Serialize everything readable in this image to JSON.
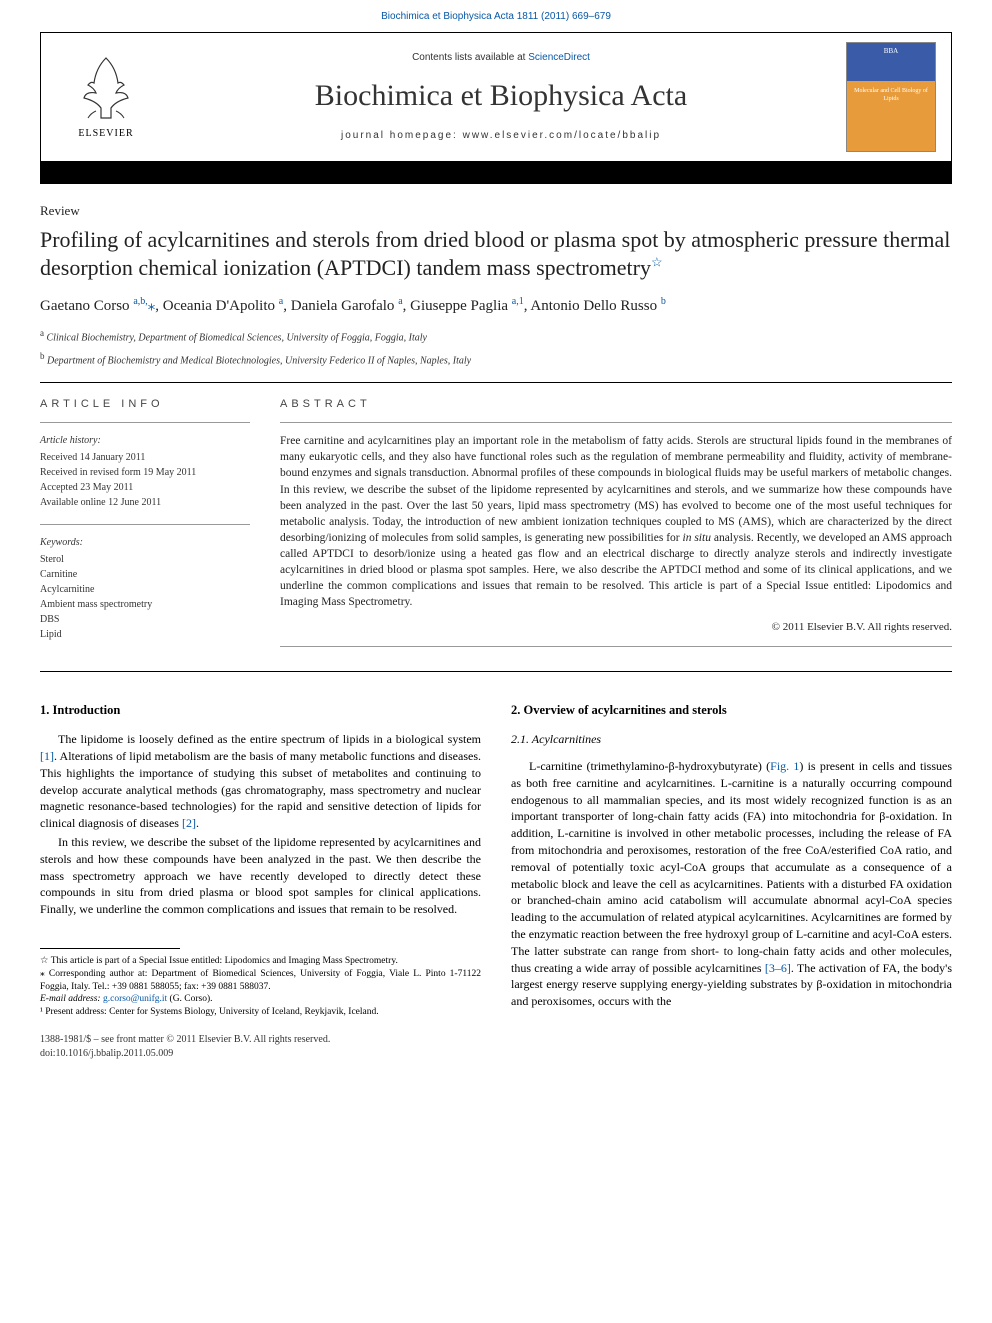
{
  "crumb": "Biochimica et Biophysica Acta 1811 (2011) 669–679",
  "header": {
    "contents_prefix": "Contents lists available at ",
    "contents_link": "ScienceDirect",
    "journal": "Biochimica et Biophysica Acta",
    "homepage_prefix": "journal homepage: ",
    "homepage": "www.elsevier.com/locate/bbalip",
    "elsevier": "ELSEVIER",
    "cover_top": "BBA",
    "cover_sub": "Molecular and Cell Biology of Lipids"
  },
  "article": {
    "type": "Review",
    "title": "Profiling of acylcarnitines and sterols from dried blood or plasma spot by atmospheric pressure thermal desorption chemical ionization (APTDCI) tandem mass spectrometry",
    "star": "☆",
    "authors_html": "Gaetano Corso <sup>a,b,</sup><span class='corr'>⁎</span>, Oceania D'Apolito <sup>a</sup>, Daniela Garofalo <sup>a</sup>, Giuseppe Paglia <sup>a,1</sup>, Antonio Dello Russo <sup>b</sup>",
    "affiliations": [
      {
        "sup": "a",
        "text": "Clinical Biochemistry, Department of Biomedical Sciences, University of Foggia, Foggia, Italy"
      },
      {
        "sup": "b",
        "text": "Department of Biochemistry and Medical Biotechnologies, University Federico II of Naples, Naples, Italy"
      }
    ]
  },
  "info": {
    "head": "ARTICLE INFO",
    "history_label": "Article history:",
    "history": [
      "Received 14 January 2011",
      "Received in revised form 19 May 2011",
      "Accepted 23 May 2011",
      "Available online 12 June 2011"
    ],
    "keywords_label": "Keywords:",
    "keywords": [
      "Sterol",
      "Carnitine",
      "Acylcarnitine",
      "Ambient mass spectrometry",
      "DBS",
      "Lipid"
    ]
  },
  "abstract": {
    "head": "ABSTRACT",
    "text": "Free carnitine and acylcarnitines play an important role in the metabolism of fatty acids. Sterols are structural lipids found in the membranes of many eukaryotic cells, and they also have functional roles such as the regulation of membrane permeability and fluidity, activity of membrane-bound enzymes and signals transduction. Abnormal profiles of these compounds in biological fluids may be useful markers of metabolic changes. In this review, we describe the subset of the lipidome represented by acylcarnitines and sterols, and we summarize how these compounds have been analyzed in the past. Over the last 50 years, lipid mass spectrometry (MS) has evolved to become one of the most useful techniques for metabolic analysis. Today, the introduction of new ambient ionization techniques coupled to MS (AMS), which are characterized by the direct desorbing/ionizing of molecules from solid samples, is generating new possibilities for in situ analysis. Recently, we developed an AMS approach called APTDCI to desorb/ionize using a heated gas flow and an electrical discharge to directly analyze sterols and indirectly investigate acylcarnitines in dried blood or plasma spot samples. Here, we also describe the APTDCI method and some of its clinical applications, and we underline the common complications and issues that remain to be resolved. This article is part of a Special Issue entitled: Lipodomics and Imaging Mass Spectrometry.",
    "copyright": "© 2011 Elsevier B.V. All rights reserved."
  },
  "sections": {
    "intro_title": "1. Introduction",
    "intro_p1": "The lipidome is loosely defined as the entire spectrum of lipids in a biological system [1]. Alterations of lipid metabolism are the basis of many metabolic functions and diseases. This highlights the importance of studying this subset of metabolites and continuing to develop accurate analytical methods (gas chromatography, mass spectrometry and nuclear magnetic resonance-based technologies) for the rapid and sensitive detection of lipids for clinical diagnosis of diseases [2].",
    "intro_p2": "In this review, we describe the subset of the lipidome represented by acylcarnitines and sterols and how these compounds have been analyzed in the past. We then describe the mass spectrometry approach we have recently developed to directly detect these compounds in situ from dried plasma or blood spot samples for clinical applications. Finally, we underline the common complications and issues that remain to be resolved.",
    "over_title": "2. Overview of acylcarnitines and sterols",
    "acyl_title": "2.1. Acylcarnitines",
    "acyl_p1": "L-carnitine (trimethylamino-β-hydroxybutyrate) (Fig. 1) is present in cells and tissues as both free carnitine and acylcarnitines. L-carnitine is a naturally occurring compound endogenous to all mammalian species, and its most widely recognized function is as an important transporter of long-chain fatty acids (FA) into mitochondria for β-oxidation. In addition, L-carnitine is involved in other metabolic processes, including the release of FA from mitochondria and peroxisomes, restoration of the free CoA/esterified CoA ratio, and removal of potentially toxic acyl-CoA groups that accumulate as a consequence of a metabolic block and leave the cell as acylcarnitines. Patients with a disturbed FA oxidation or branched-chain amino acid catabolism will accumulate abnormal acyl-CoA species leading to the accumulation of related atypical acylcarnitines. Acylcarnitines are formed by the enzymatic reaction between the free hydroxyl group of L-carnitine and acyl-CoA esters. The latter substrate can range from short- to long-chain fatty acids and other molecules, thus creating a wide array of possible acylcarnitines [3–6]. The activation of FA, the body's largest energy reserve supplying energy-yielding substrates by β-oxidation in mitochondria and peroxisomes, occurs with the"
  },
  "footnotes": {
    "star": "☆ This article is part of a Special Issue entitled: Lipodomics and Imaging Mass Spectrometry.",
    "corr": "⁎ Corresponding author at: Department of Biomedical Sciences, University of Foggia, Viale L. Pinto 1-71122 Foggia, Italy. Tel.: +39 0881 588055; fax: +39 0881 588037.",
    "email_label": "E-mail address: ",
    "email": "g.corso@unifg.it",
    "email_suffix": " (G. Corso).",
    "present": "¹ Present address: Center for Systems Biology, University of Iceland, Reykjavik, Iceland."
  },
  "bottom": {
    "issn": "1388-1981/$ – see front matter © 2011 Elsevier B.V. All rights reserved.",
    "doi": "doi:10.1016/j.bbalip.2011.05.009"
  },
  "colors": {
    "link": "#0858a6",
    "text": "#000000",
    "cover_blue": "#3a5ba8",
    "cover_orange": "#e89b3a"
  }
}
